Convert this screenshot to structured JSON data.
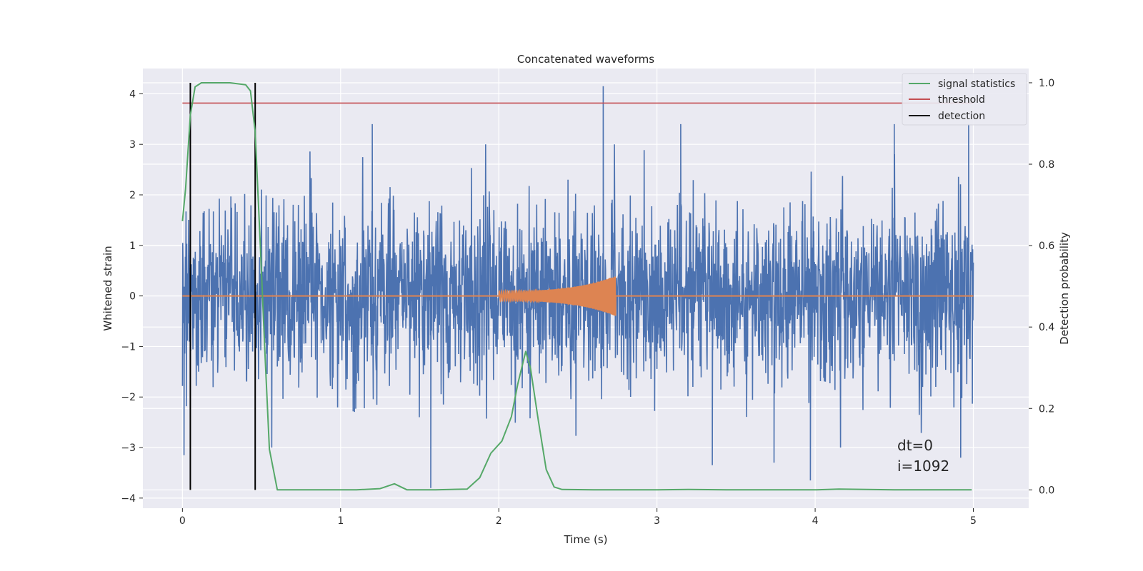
{
  "chart_data": {
    "type": "line",
    "title": "Concatenated waveforms",
    "xlabel": "Time (s)",
    "ylabel": "Whitened strain",
    "y2label": "Detection probability",
    "xlim": [
      -0.25,
      5.35
    ],
    "ylim": [
      -4.2,
      4.5
    ],
    "y2lim": [
      -0.045,
      1.035
    ],
    "xticks": [
      0,
      1,
      2,
      3,
      4,
      5
    ],
    "yticks": [
      -4,
      -3,
      -2,
      -1,
      0,
      1,
      2,
      3,
      4
    ],
    "y2ticks": [
      0.0,
      0.2,
      0.4,
      0.6,
      0.8,
      1.0
    ],
    "xtick_labels": [
      "0",
      "1",
      "2",
      "3",
      "4",
      "5"
    ],
    "ytick_labels": [
      "−4",
      "−3",
      "−2",
      "−1",
      "0",
      "1",
      "2",
      "3",
      "4"
    ],
    "y2tick_labels": [
      "0.0",
      "0.2",
      "0.4",
      "0.6",
      "0.8",
      "1.0"
    ],
    "grid": true,
    "legend_position": "top-right",
    "colors": {
      "strain": "#4c72b0",
      "template": "#dd8452",
      "signal_statistics": "#55a868",
      "threshold": "#c44e52",
      "detection": "#000000",
      "background": "#eaeaf2",
      "grid": "#ffffff"
    },
    "series": [
      {
        "name": "",
        "axis": "left",
        "description_kind": "noise",
        "x_range": [
          0,
          5
        ],
        "typical_amplitude": 1.0,
        "peak_points": [
          [
            2.66,
            4.15
          ],
          [
            1.2,
            3.4
          ],
          [
            3.15,
            3.4
          ],
          [
            4.5,
            3.4
          ],
          [
            4.97,
            3.4
          ],
          [
            1.57,
            -3.8
          ],
          [
            3.97,
            -3.65
          ],
          [
            0.01,
            -3.15
          ],
          [
            3.35,
            -3.35
          ],
          [
            3.74,
            -3.3
          ],
          [
            4.92,
            -3.2
          ]
        ]
      },
      {
        "name": "",
        "axis": "left",
        "description_kind": "chirp",
        "x_range": [
          2.0,
          2.74
        ],
        "peak_amplitude": 0.4
      },
      {
        "name": "signal statistics",
        "axis": "right",
        "x": [
          0.0,
          0.02,
          0.05,
          0.08,
          0.12,
          0.2,
          0.3,
          0.4,
          0.43,
          0.46,
          0.49,
          0.52,
          0.55,
          0.6,
          0.7,
          0.9,
          1.1,
          1.25,
          1.34,
          1.42,
          1.6,
          1.8,
          1.88,
          1.95,
          2.02,
          2.08,
          2.12,
          2.17,
          2.2,
          2.25,
          2.3,
          2.35,
          2.4,
          2.6,
          3.0,
          3.2,
          3.5,
          4.0,
          4.15,
          4.5,
          4.99
        ],
        "y": [
          0.66,
          0.74,
          0.92,
          0.99,
          1.0,
          1.0,
          1.0,
          0.995,
          0.98,
          0.88,
          0.62,
          0.35,
          0.1,
          0.0,
          0.0,
          0.0,
          0.0,
          0.003,
          0.015,
          0.0,
          0.0,
          0.002,
          0.03,
          0.09,
          0.12,
          0.18,
          0.26,
          0.34,
          0.3,
          0.17,
          0.05,
          0.007,
          0.001,
          0.0,
          0.0,
          0.001,
          0.0,
          0.0,
          0.002,
          0.0,
          0.0
        ]
      },
      {
        "name": "threshold",
        "axis": "right",
        "x": [
          0,
          5
        ],
        "y": [
          0.95,
          0.95
        ]
      },
      {
        "name": "detection",
        "axis": "right",
        "vertical_lines": [
          0.05,
          0.46
        ],
        "y_range": [
          0.0,
          1.0
        ]
      }
    ],
    "annotations": [
      "dt=0",
      "i=1092"
    ]
  }
}
